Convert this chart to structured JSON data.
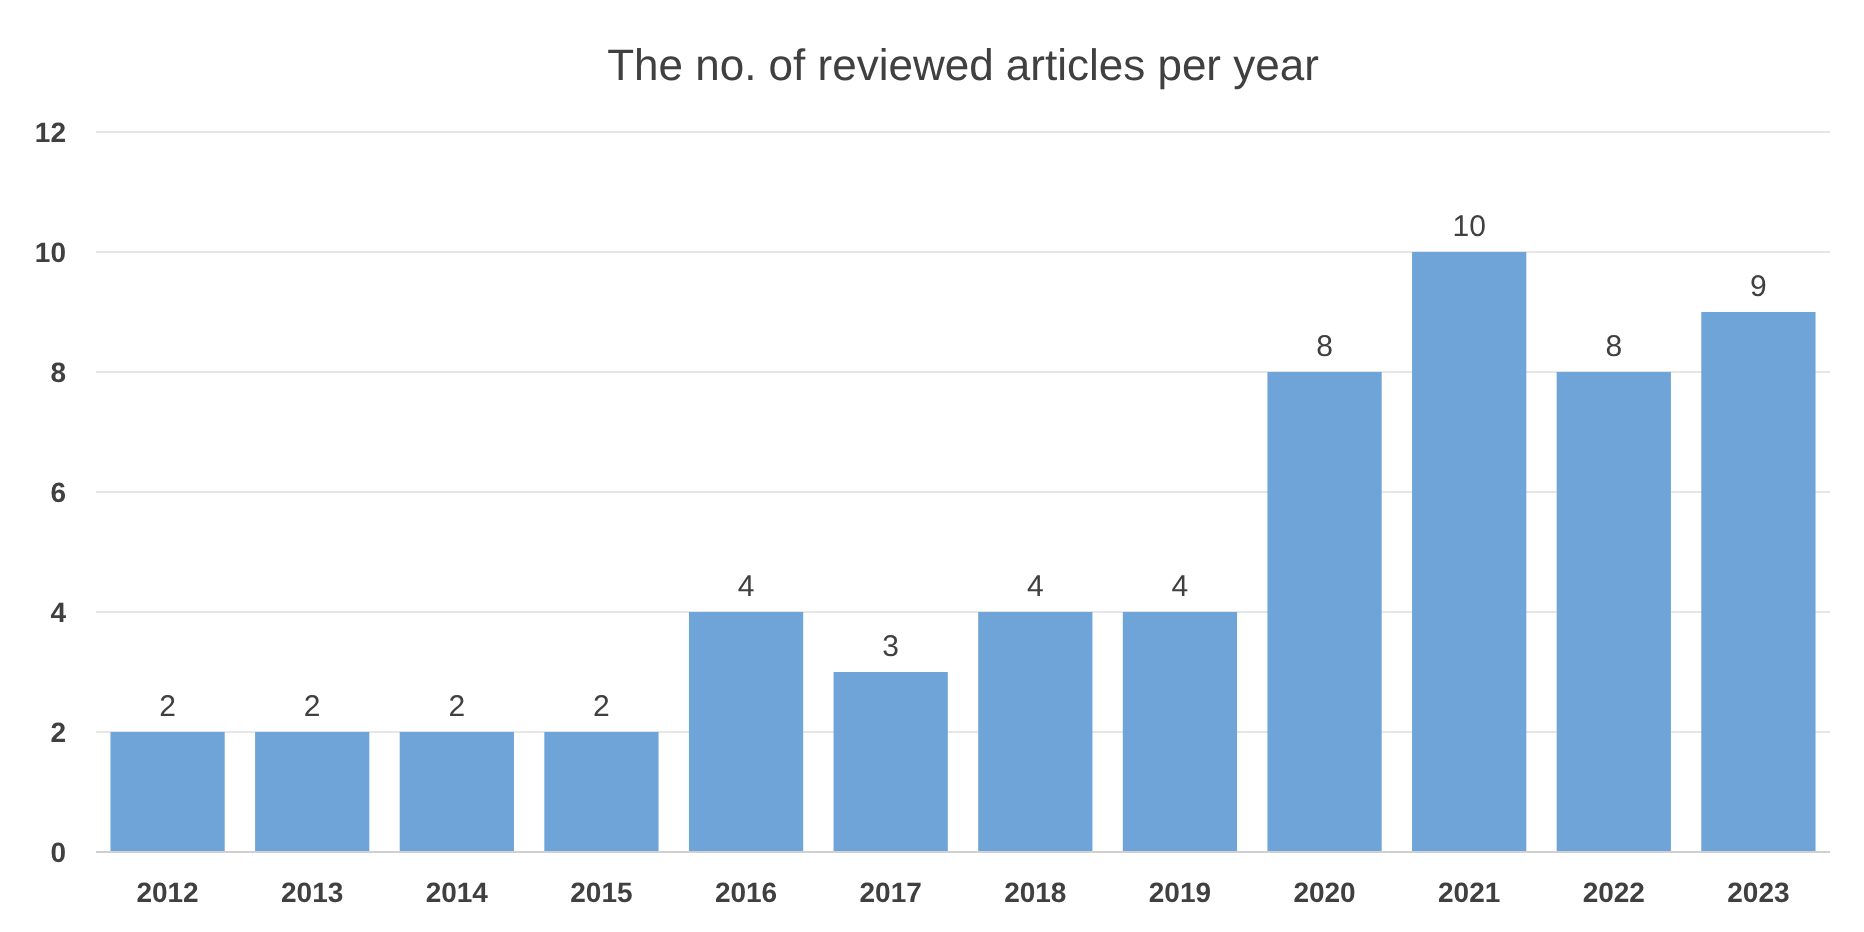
{
  "chart_data": {
    "type": "bar",
    "title": "The no. of reviewed articles per year",
    "categories": [
      "2012",
      "2013",
      "2014",
      "2015",
      "2016",
      "2017",
      "2018",
      "2019",
      "2020",
      "2021",
      "2022",
      "2023"
    ],
    "values": [
      2,
      2,
      2,
      2,
      4,
      3,
      4,
      4,
      8,
      10,
      8,
      9
    ],
    "color": "#6fa4d9",
    "ylim": [
      0,
      12
    ],
    "yticks": [
      0,
      2,
      4,
      6,
      8,
      10,
      12
    ],
    "grid": "y",
    "data_labels": true
  }
}
